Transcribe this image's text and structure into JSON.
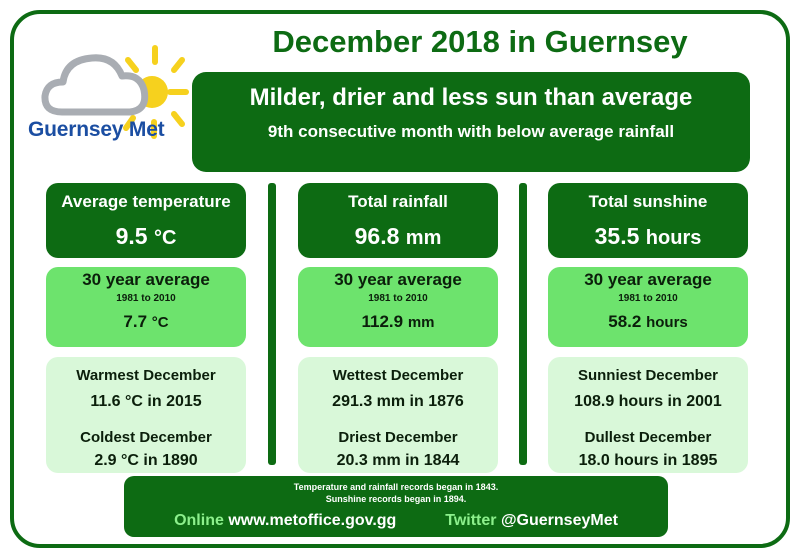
{
  "logo": {
    "text": "Guernsey Met"
  },
  "title": "December 2018 in Guernsey",
  "headline": {
    "main": "Milder, drier and less sun than average",
    "sub": "9th consecutive month with below average rainfall"
  },
  "columns": [
    {
      "label": "Average temperature",
      "value": "9.5",
      "unit": "°C",
      "avg_label": "30 year average",
      "avg_period": "1981 to 2010",
      "avg_value": "7.7",
      "avg_unit": "°C",
      "rec1_label": "Warmest December",
      "rec1_value": "11.6 °C in 2015",
      "rec2_label": "Coldest December",
      "rec2_value": "2.9 °C in 1890"
    },
    {
      "label": "Total rainfall",
      "value": "96.8",
      "unit": "mm",
      "avg_label": "30 year average",
      "avg_period": "1981 to 2010",
      "avg_value": "112.9",
      "avg_unit": "mm",
      "rec1_label": "Wettest December",
      "rec1_value": "291.3 mm in 1876",
      "rec2_label": "Driest December",
      "rec2_value": "20.3 mm in 1844"
    },
    {
      "label": "Total sunshine",
      "value": "35.5",
      "unit": "hours",
      "avg_label": "30 year average",
      "avg_period": "1981 to 2010",
      "avg_value": "58.2",
      "avg_unit": "hours",
      "rec1_label": "Sunniest December",
      "rec1_value": "108.9 hours in 2001",
      "rec2_label": "Dullest December",
      "rec2_value": "18.0 hours in 1895"
    }
  ],
  "footer": {
    "note1": "Temperature and rainfall records began in 1843.",
    "note2": "Sunshine records began in 1894.",
    "online_label": "Online",
    "online_value": "www.metoffice.gov.gg",
    "twitter_label": "Twitter",
    "twitter_value": "@GuernseyMet"
  },
  "colors": {
    "dark_green": "#0d6b13",
    "mid_green": "#6de36d",
    "light_green": "#d9f8d9",
    "logo_blue": "#1b4ea2",
    "sun_yellow": "#f6d11e"
  }
}
